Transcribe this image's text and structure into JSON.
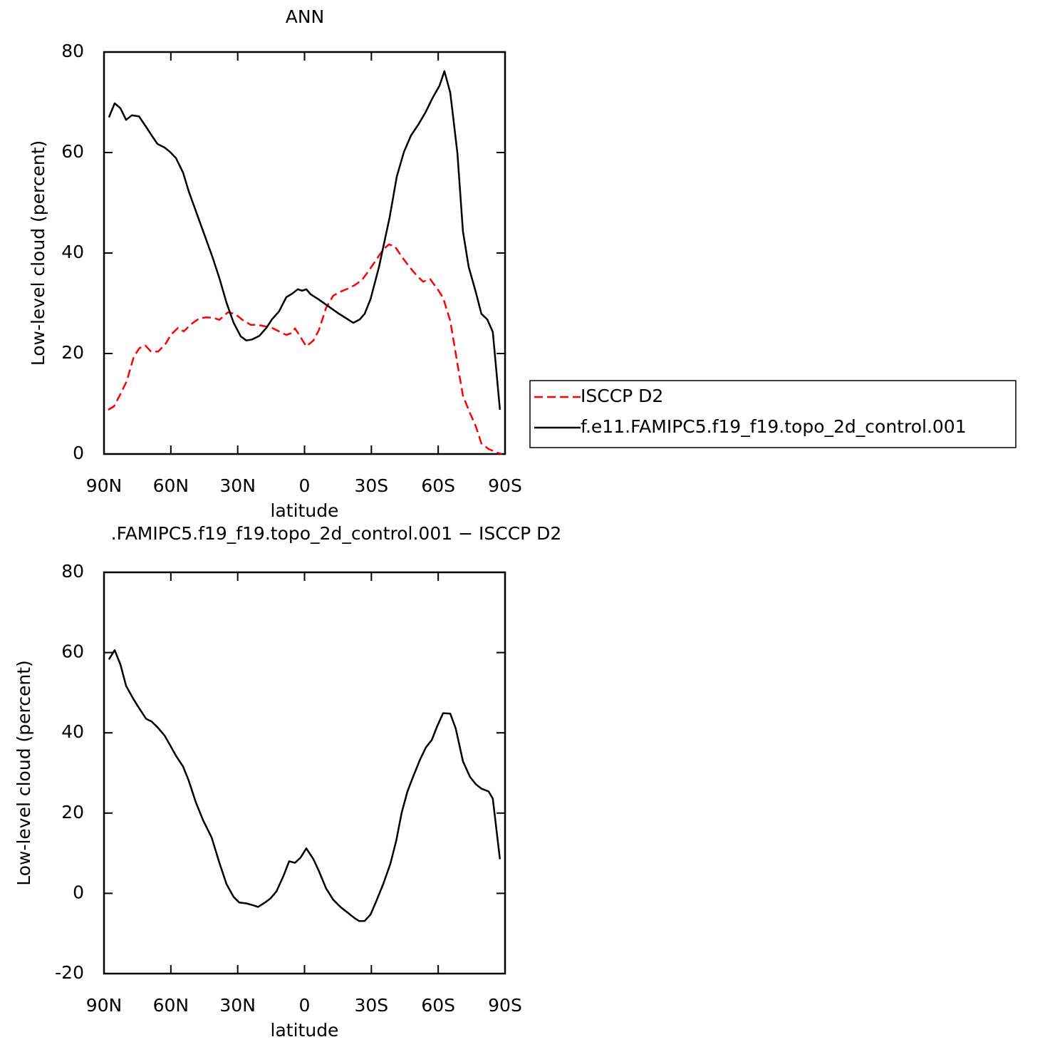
{
  "chart_data": [
    {
      "type": "line",
      "title": "ANN",
      "xlabel": "latitude",
      "ylabel": "Low-level cloud (percent)",
      "xlim": [
        90,
        -90
      ],
      "xticks": [
        {
          "value": 90,
          "label": "90N"
        },
        {
          "value": 60,
          "label": "60N"
        },
        {
          "value": 30,
          "label": "30N"
        },
        0,
        {
          "value": -30,
          "label": "30S"
        },
        {
          "value": -60,
          "label": "60S"
        },
        {
          "value": -90,
          "label": "90S"
        }
      ],
      "ylim": [
        0,
        80
      ],
      "yticks": [
        0,
        20,
        40,
        60,
        80
      ],
      "legend": "right",
      "series": [
        {
          "name": "ISCCP D2",
          "color": "#ff0000",
          "style": "dashed",
          "x": [
            88.1,
            85.5,
            83.0,
            79.8,
            76.6,
            74.0,
            71.5,
            68.9,
            65.7,
            62.5,
            60.0,
            56.8,
            54.2,
            51.0,
            47.2,
            44.0,
            40.8,
            38.2,
            34.4,
            31.2,
            27.3,
            24.1,
            20.9,
            17.7,
            14.6,
            11.4,
            8.2,
            5.6,
            4.3,
            2.4,
            -0.8,
            -4.0,
            -6.5,
            -9.7,
            -12.9,
            -16.1,
            -19.3,
            -22.5,
            -25.7,
            -28.9,
            -32.1,
            -35.3,
            -37.9,
            -40.4,
            -43.6,
            -46.8,
            -50.0,
            -53.2,
            -56.4,
            -59.6,
            -62.2,
            -65.4,
            -68.6,
            -71.1,
            -74.3,
            -76.9,
            -79.4,
            -82.6,
            -85.8,
            -88.4
          ],
          "values": [
            8.8,
            9.5,
            11.6,
            14.5,
            19.4,
            21.1,
            21.6,
            20.4,
            20.4,
            21.8,
            23.7,
            25.1,
            24.4,
            25.8,
            27.0,
            27.2,
            27.1,
            26.7,
            28.2,
            27.9,
            26.5,
            25.7,
            25.7,
            25.4,
            25.1,
            24.4,
            23.7,
            24.1,
            25.0,
            23.7,
            21.4,
            22.6,
            24.7,
            29.1,
            31.5,
            32.3,
            32.9,
            33.6,
            34.6,
            36.5,
            38.6,
            40.7,
            41.7,
            41.4,
            39.3,
            37.4,
            35.7,
            34.3,
            34.8,
            32.9,
            31.1,
            26.5,
            18.0,
            11.6,
            8.1,
            5.5,
            2.1,
            1.0,
            0.4,
            0
          ]
        },
        {
          "name": "f.e11.FAMIPC5.f19_f19.topo_2d_control.001",
          "color": "#000000",
          "style": "solid",
          "x": [
            87.8,
            85.2,
            82.6,
            80.1,
            77.5,
            74.3,
            71.1,
            68.6,
            66.0,
            62.8,
            60.3,
            57.7,
            54.5,
            52.0,
            41.4,
            38.2,
            35.0,
            31.8,
            28.6,
            26.1,
            23.5,
            20.3,
            17.1,
            14.6,
            11.4,
            8.2,
            5.6,
            3.0,
            1.1,
            -0.8,
            -2.7,
            -5.9,
            -9.1,
            -12.3,
            -15.5,
            -18.7,
            -21.9,
            -24.8,
            -27.0,
            -29.6,
            -33.4,
            -38.2,
            -41.4,
            -44.6,
            -47.8,
            -51.0,
            -54.2,
            -57.4,
            -60.6,
            -62.8,
            -65.4,
            -68.6,
            -71.1,
            -73.7,
            -76.9,
            -79.4,
            -82.0,
            -84.5,
            -87.7
          ],
          "values": [
            67.0,
            69.8,
            68.8,
            66.5,
            67.4,
            67.2,
            65.1,
            63.4,
            61.7,
            61.0,
            60.1,
            58.9,
            56.0,
            52.3,
            39.3,
            35.0,
            30.1,
            26.1,
            23.4,
            22.6,
            22.8,
            23.5,
            25.1,
            26.8,
            28.4,
            31.2,
            31.9,
            32.8,
            32.5,
            32.8,
            31.8,
            30.9,
            29.9,
            28.9,
            27.9,
            27.0,
            26.1,
            26.8,
            27.9,
            30.8,
            37.2,
            47.1,
            55.2,
            60.1,
            63.4,
            65.5,
            67.9,
            70.8,
            73.3,
            76.2,
            71.9,
            59.9,
            44.3,
            37.2,
            32.2,
            27.9,
            26.8,
            24.3,
            8.8
          ]
        }
      ]
    },
    {
      "type": "line",
      "title": ".FAMIPC5.f19_f19.topo_2d_control.001 − ISCCP D2",
      "xlabel": "latitude",
      "ylabel": "Low-level cloud (percent)",
      "xlim": [
        90,
        -90
      ],
      "xticks": [
        {
          "value": 90,
          "label": "90N"
        },
        {
          "value": 60,
          "label": "60N"
        },
        {
          "value": 30,
          "label": "30N"
        },
        0,
        {
          "value": -30,
          "label": "30S"
        },
        {
          "value": -60,
          "label": "60S"
        },
        {
          "value": -90,
          "label": "90S"
        }
      ],
      "ylim": [
        -20,
        80
      ],
      "yticks": [
        -20,
        0,
        20,
        40,
        60,
        80
      ],
      "series": [
        {
          "color": "#000000",
          "style": "solid",
          "x": [
            87.8,
            85.2,
            82.6,
            80.1,
            76.9,
            74.3,
            71.1,
            68.6,
            66.0,
            62.8,
            60.3,
            57.7,
            54.5,
            52.0,
            48.8,
            45.6,
            41.7,
            38.2,
            35.0,
            31.8,
            29.3,
            26.1,
            22.9,
            20.9,
            17.7,
            15.2,
            12.6,
            9.4,
            6.9,
            4.3,
            1.8,
            -0.8,
            -4.0,
            -6.5,
            -9.7,
            -12.9,
            -16.1,
            -19.3,
            -22.5,
            -24.5,
            -27.0,
            -29.6,
            -32.1,
            -35.3,
            -38.5,
            -41.1,
            -43.6,
            -46.2,
            -48.7,
            -51.9,
            -54.5,
            -57.1,
            -59.6,
            -62.2,
            -65.4,
            -67.9,
            -71.1,
            -74.3,
            -76.9,
            -79.4,
            -82.6,
            -84.5,
            -87.7
          ],
          "values": [
            58.3,
            60.6,
            57.0,
            51.7,
            48.5,
            46.2,
            43.5,
            42.8,
            41.4,
            39.3,
            36.9,
            34.3,
            31.6,
            28.1,
            22.7,
            18.3,
            13.9,
            7.6,
            2.3,
            -0.9,
            -2.3,
            -2.5,
            -3.0,
            -3.4,
            -2.3,
            -1.2,
            0.5,
            4.4,
            8.0,
            7.6,
            8.9,
            11.2,
            8.5,
            5.5,
            1.2,
            -1.6,
            -3.4,
            -4.8,
            -6.2,
            -6.9,
            -6.9,
            -5.3,
            -2.1,
            2.3,
            7.3,
            13.0,
            20.1,
            25.4,
            29.0,
            33.4,
            36.4,
            38.2,
            41.7,
            44.9,
            44.8,
            41.0,
            32.9,
            29.0,
            27.2,
            26.1,
            25.4,
            23.6,
            8.5
          ]
        }
      ]
    }
  ]
}
